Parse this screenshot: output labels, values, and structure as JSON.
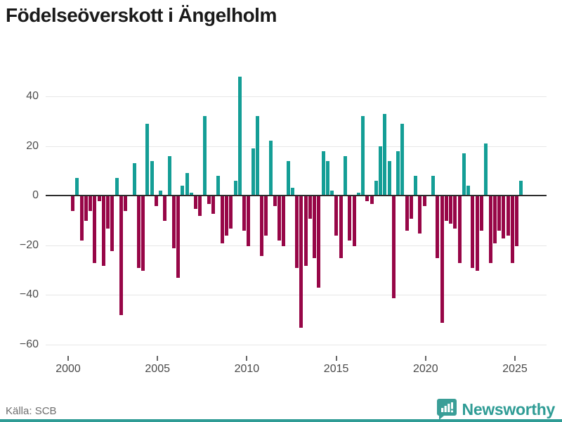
{
  "title": "Födelseöverskott i Ängelholm",
  "source": "Källa: SCB",
  "brand": {
    "name": "Newsworthy",
    "color": "#2f9c95"
  },
  "colors": {
    "positive": "#149e96",
    "negative": "#970647",
    "grid": "#e7e7e7",
    "zero_axis": "#2d2d2d",
    "tick_text": "#4d4d4d"
  },
  "chart_data": {
    "type": "bar",
    "title": "Födelseöverskott i Ängelholm",
    "xlabel": "",
    "ylabel": "",
    "x_unit": "quarter",
    "x_start": "2000 Q1",
    "x_end": "2025 Q3",
    "x_tick_labels": [
      "2000",
      "2005",
      "2010",
      "2015",
      "2020",
      "2025"
    ],
    "y_ticks": [
      40,
      20,
      0,
      -20,
      -40,
      -60
    ],
    "ylim": [
      -60,
      50
    ],
    "grid": true,
    "legend": false,
    "series": [
      {
        "name": "Födelseöverskott",
        "values": [
          -6,
          7,
          -18,
          -10,
          -6,
          -27,
          -2,
          -28,
          -13,
          -22,
          7,
          -48,
          -6,
          0,
          13,
          -29,
          -30,
          29,
          14,
          -4,
          2,
          -10,
          16,
          -21,
          -33,
          4,
          9,
          1,
          -5,
          -8,
          32,
          -3,
          -7,
          8,
          -19,
          -16,
          -13,
          6,
          48,
          -14,
          -20,
          19,
          32,
          -24,
          -16,
          22,
          -4,
          -18,
          -20,
          14,
          3,
          -29,
          -53,
          -28,
          -9,
          -25,
          -37,
          18,
          14,
          2,
          -16,
          -25,
          16,
          -18,
          -20,
          1,
          32,
          -2,
          -3,
          6,
          20,
          33,
          14,
          -41,
          18,
          29,
          -14,
          -9,
          8,
          -15,
          -4,
          0,
          8,
          -25,
          -51,
          -10,
          -11,
          -13,
          -27,
          17,
          4,
          -29,
          -30,
          -14,
          21,
          -27,
          -19,
          -14,
          -17,
          -16,
          -27,
          -20,
          6
        ]
      }
    ]
  }
}
